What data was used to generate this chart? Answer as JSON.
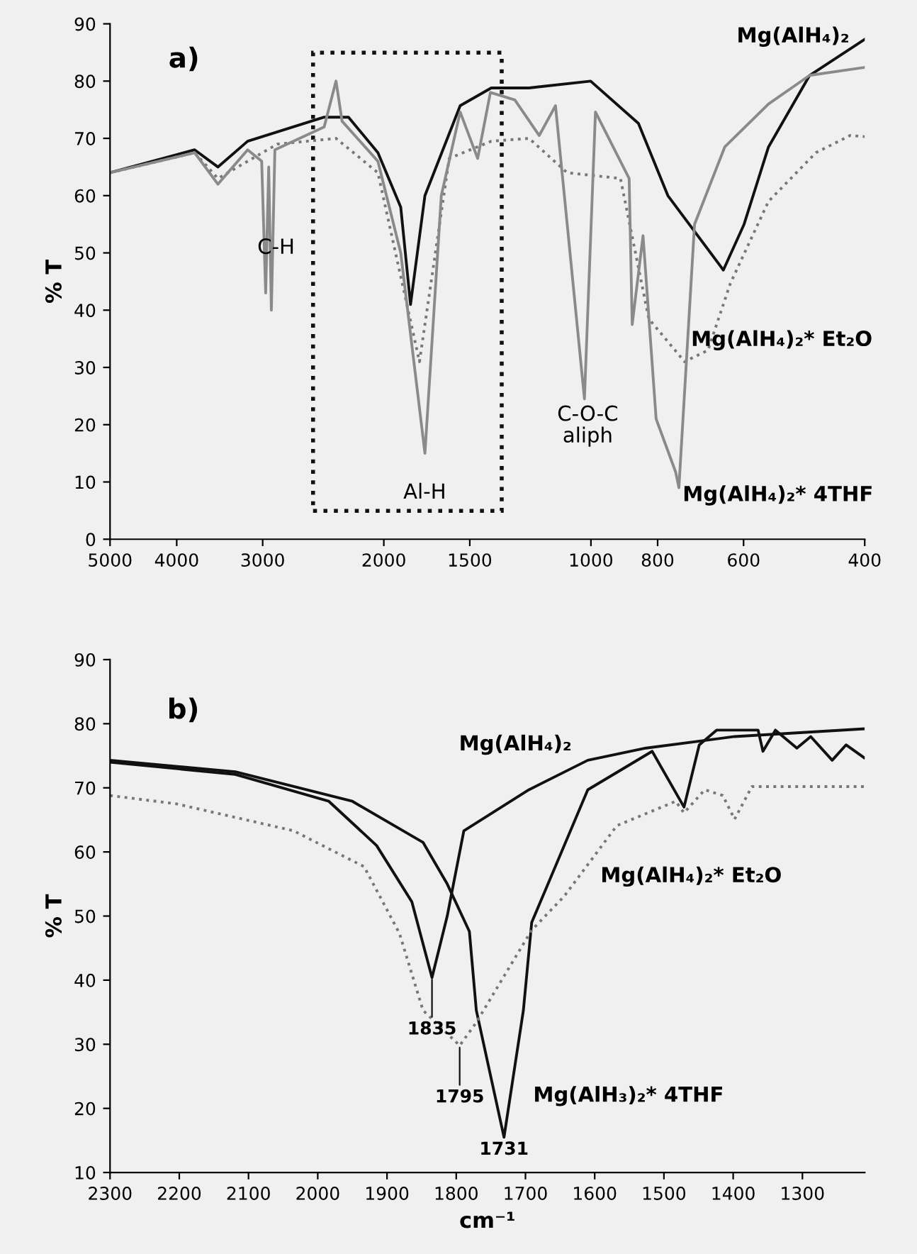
{
  "chart_data": [
    {
      "type": "line",
      "ylabel": "% T",
      "log": "x",
      "xlim": [
        5000,
        400
      ],
      "xticks": [
        5000,
        4000,
        3000,
        2000,
        1500,
        1000,
        800,
        600,
        400
      ],
      "ylim": [
        0,
        90
      ],
      "yticks": [
        0,
        10,
        20,
        30,
        40,
        50,
        60,
        70,
        80,
        90
      ],
      "grid": false,
      "legend": false,
      "marker": "none",
      "annotations": [
        "a)",
        "C-H",
        "Al-H",
        "C-O-C\naliph"
      ],
      "series": [
        {
          "name": "Mg(AlH₄)₂",
          "color": "#111111",
          "line_style": "solid",
          "x": [
            5000,
            3767,
            3485,
            3155,
            2442,
            2251,
            2040,
            1890,
            1829,
            1743,
            1549,
            1396,
            1230,
            1001,
            853,
            773,
            642,
            599,
            552,
            481,
            400
          ],
          "values": [
            64,
            68,
            65,
            69.5,
            73.7,
            73.7,
            67.5,
            58,
            41,
            60,
            75.7,
            78.8,
            78.8,
            80,
            72.6,
            60,
            47,
            55,
            68.5,
            81,
            87.3
          ]
        },
        {
          "name": "Mg(AlH₄)₂* Et₂O",
          "color": "#777777",
          "line_style": "dotted",
          "x": [
            5000,
            3767,
            3485,
            2856,
            2347,
            2040,
            1775,
            1607,
            1396,
            1230,
            1083,
            906,
            824,
            731,
            676,
            627,
            552,
            471,
            420,
            400
          ],
          "values": [
            64,
            67.5,
            63,
            69,
            70,
            64,
            31,
            66.5,
            69.5,
            70,
            64,
            63,
            38.5,
            31,
            33,
            44.7,
            59,
            67.5,
            70.5,
            70.3
          ]
        },
        {
          "name": "Mg(AlH₄)₂* 4THF",
          "color": "#8a8a8a",
          "line_style": "solid",
          "x": [
            5000,
            3767,
            3485,
            3155,
            3010,
            2970,
            2940,
            2914,
            2880,
            2442,
            2347,
            2300,
            2040,
            1890,
            1743,
            1650,
            1549,
            1461,
            1400,
            1290,
            1189,
            1126,
            1022,
            985,
            880,
            871,
            840,
            804,
            753,
            745,
            707,
            639,
            552,
            481,
            400
          ],
          "values": [
            64,
            67.5,
            62,
            68,
            66,
            43,
            65,
            40,
            68,
            72,
            80,
            73,
            66,
            50,
            15,
            60,
            74.6,
            66.5,
            78,
            76.7,
            70.5,
            75.7,
            24.5,
            74.6,
            63,
            37.5,
            53,
            21,
            11.7,
            9,
            55,
            68.5,
            76,
            81,
            82.4
          ]
        }
      ]
    },
    {
      "type": "line",
      "ylabel": "% T",
      "xlabel": "cm⁻¹",
      "xlim": [
        2300,
        1210
      ],
      "xticks": [
        2300,
        2200,
        2100,
        2000,
        1900,
        1800,
        1700,
        1600,
        1500,
        1400,
        1300
      ],
      "ylim": [
        10,
        90
      ],
      "yticks": [
        10,
        20,
        30,
        40,
        50,
        60,
        70,
        80,
        90
      ],
      "grid": false,
      "legend": false,
      "marker": "none",
      "annotations": [
        "b)",
        {
          "text": "1835",
          "x": 1835,
          "y": 40.4
        },
        {
          "text": "1795",
          "x": 1795,
          "y": 29.8
        },
        {
          "text": "1731",
          "x": 1731,
          "y": 15.5
        }
      ],
      "series": [
        {
          "name": "Mg(AlH₄)₂",
          "color": "#111111",
          "line_style": "solid",
          "x": [
            2300,
            2119,
            1984,
            1915,
            1864,
            1835,
            1813,
            1789,
            1695,
            1610,
            1526,
            1398,
            1212
          ],
          "values": [
            74,
            72.1,
            67.9,
            61,
            52.2,
            40.4,
            50,
            63.3,
            69.7,
            74.3,
            76.2,
            78,
            79.2
          ]
        },
        {
          "name": "Mg(AlH₃)₂* 4THF",
          "color": "#111111",
          "line_style": "solid",
          "x": [
            2300,
            2119,
            1950,
            1848,
            1813,
            1781,
            1771,
            1731,
            1703,
            1691,
            1610,
            1517,
            1471,
            1449,
            1424,
            1364,
            1357,
            1339,
            1308,
            1288,
            1257,
            1237,
            1211
          ],
          "values": [
            74.3,
            72.5,
            67.9,
            61.5,
            55,
            47.6,
            35.3,
            15.5,
            35.3,
            49,
            69.7,
            75.7,
            67,
            76.7,
            79,
            79,
            75.7,
            79,
            76.2,
            78,
            74.3,
            76.7,
            74.7
          ]
        },
        {
          "name": "Mg(AlH₄)₂* Et₂O",
          "color": "#777777",
          "line_style": "dotted",
          "x": [
            2300,
            2204,
            2035,
            1933,
            1882,
            1848,
            1795,
            1771,
            1730,
            1691,
            1644,
            1568,
            1483,
            1471,
            1441,
            1415,
            1398,
            1373,
            1211
          ],
          "values": [
            68.8,
            67.5,
            63.3,
            57.7,
            47.3,
            35.3,
            29.8,
            33.4,
            40.8,
            47.8,
            53.1,
            64.1,
            67.9,
            66.1,
            69.7,
            68.8,
            65.1,
            70.2,
            70.2
          ]
        }
      ]
    }
  ]
}
